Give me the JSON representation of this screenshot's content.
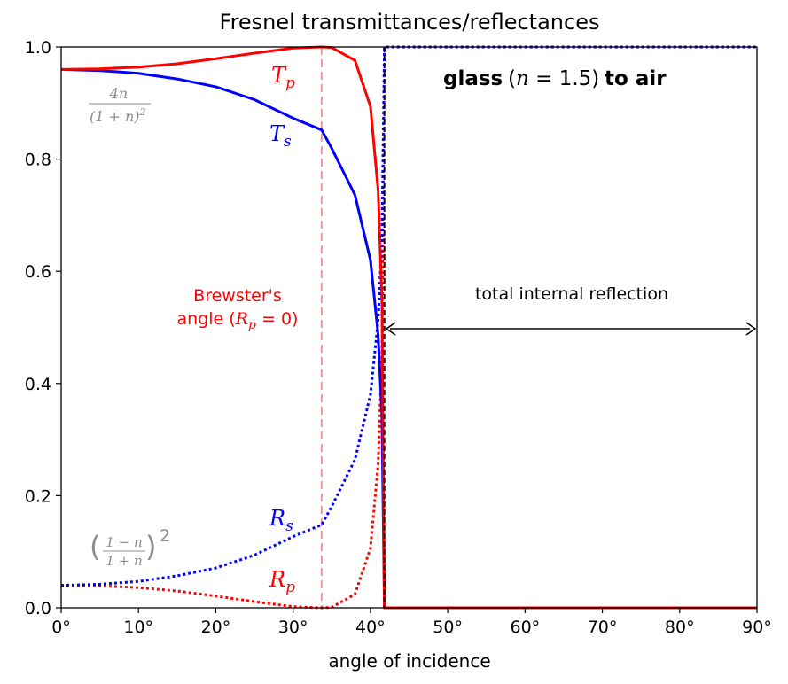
{
  "chart_data": {
    "type": "line",
    "title": "Fresnel transmittances/reflectances",
    "xlabel": "angle of incidence",
    "ylabel": "",
    "xlim": [
      0,
      90
    ],
    "ylim": [
      0,
      1
    ],
    "x_ticks": [
      0,
      10,
      20,
      30,
      40,
      50,
      60,
      70,
      80,
      90
    ],
    "x_tick_labels": [
      "0°",
      "10°",
      "20°",
      "30°",
      "40°",
      "50°",
      "60°",
      "70°",
      "80°",
      "90°"
    ],
    "y_ticks": [
      0,
      0.2,
      0.4,
      0.6,
      0.8,
      1.0
    ],
    "y_tick_labels": [
      "0.0",
      "0.2",
      "0.4",
      "0.6",
      "0.8",
      "1.0"
    ],
    "grid": false,
    "n": 1.5,
    "critical_angle_deg": 41.81,
    "brewster_angle_deg": 33.69,
    "series": [
      {
        "label": "Tp",
        "color": "#ff0000",
        "style": "solid",
        "x": [
          0,
          5,
          10,
          15,
          20,
          25,
          30,
          33.69,
          35,
          38,
          40,
          41,
          41.5,
          41.81,
          41.82,
          90
        ],
        "y": [
          0.96,
          0.961,
          0.964,
          0.97,
          0.979,
          0.989,
          0.998,
          1.0,
          0.999,
          0.976,
          0.894,
          0.744,
          0.543,
          0.0,
          0.0,
          0.0
        ]
      },
      {
        "label": "Ts",
        "color": "#0000ff",
        "style": "solid",
        "x": [
          0,
          5,
          10,
          15,
          20,
          25,
          30,
          33.69,
          35,
          38,
          40,
          41,
          41.5,
          41.81,
          41.82,
          90
        ],
        "y": [
          0.96,
          0.958,
          0.953,
          0.943,
          0.929,
          0.906,
          0.873,
          0.852,
          0.819,
          0.736,
          0.62,
          0.487,
          0.339,
          0.0,
          0.0,
          0.0
        ]
      },
      {
        "label": "Rs",
        "color": "#0000ff",
        "style": "dotted",
        "x": [
          0,
          5,
          10,
          15,
          20,
          25,
          30,
          33.69,
          35,
          38,
          40,
          41,
          41.5,
          41.81,
          41.82,
          90
        ],
        "y": [
          0.04,
          0.042,
          0.047,
          0.057,
          0.071,
          0.094,
          0.127,
          0.148,
          0.181,
          0.264,
          0.38,
          0.513,
          0.661,
          1.0,
          1.0,
          1.0
        ]
      },
      {
        "label": "Rp",
        "color": "#ff0000",
        "style": "dotted",
        "x": [
          0,
          5,
          10,
          15,
          20,
          25,
          30,
          33.69,
          35,
          38,
          40,
          41,
          41.5,
          41.81,
          41.82,
          90
        ],
        "y": [
          0.04,
          0.039,
          0.036,
          0.03,
          0.021,
          0.011,
          0.002,
          0.0,
          0.001,
          0.024,
          0.106,
          0.256,
          0.457,
          1.0,
          1.0,
          1.0
        ]
      }
    ],
    "labels": {
      "tp": "T",
      "tp_sub": "p",
      "ts": "T",
      "ts_sub": "s",
      "rs": "R",
      "rs_sub": "s",
      "rp": "R",
      "rp_sub": "p"
    },
    "annotations": {
      "glass_pre": "glass",
      "glass_paren_open": "(",
      "glass_n": "n",
      "glass_eq": " = 1.5)",
      "glass_post": "to air",
      "brewster_line1": "Brewster's",
      "brewster_line2_pre": "angle (",
      "brewster_line2_var": "R",
      "brewster_line2_sub": "p",
      "brewster_line2_post": " = 0)",
      "tir": "total internal reflection",
      "t0_num": "4n",
      "t0_den": "(1 + n)",
      "t0_exp": "2",
      "r0_num": "1 − n",
      "r0_den": "1 + n",
      "r0_exp": "2"
    },
    "colors": {
      "red": "#ff0000",
      "blue": "#0000ff",
      "brewster_line": "#f08080",
      "critical_line": "#000000",
      "gray_text": "#8c8c8c"
    }
  }
}
